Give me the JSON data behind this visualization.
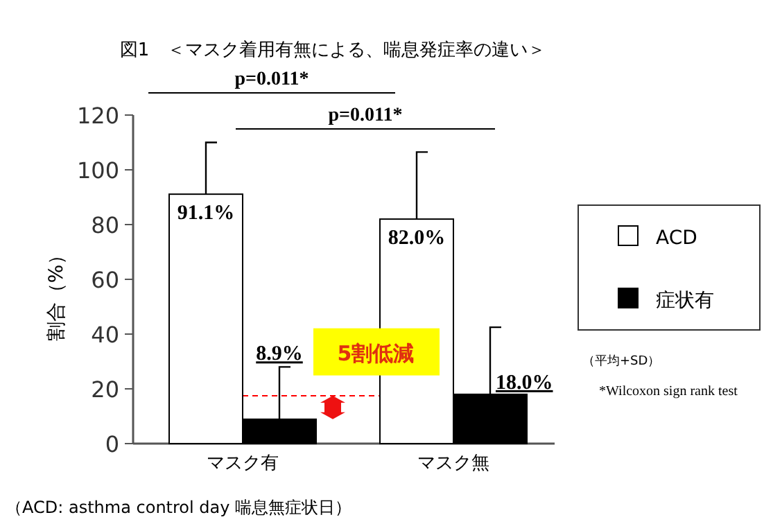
{
  "chart_data": {
    "type": "bar",
    "title": "図1　＜マスク着用有無による、喘息発症率の違い＞",
    "ylabel": "割合（%）",
    "categories": [
      "マスク有",
      "マスク無"
    ],
    "series": [
      {
        "name": "ACD",
        "color": "#ffffff",
        "values": [
          91.1,
          82.0
        ],
        "errors": [
          [
            91.1,
            110
          ],
          [
            82.0,
            106.5
          ]
        ],
        "value_labels": [
          "91.1%",
          "82.0%"
        ]
      },
      {
        "name": "症状有",
        "color": "#000000",
        "values": [
          8.9,
          18.0
        ],
        "errors": [
          [
            8.9,
            28
          ],
          [
            18.0,
            42.5
          ]
        ],
        "value_labels": [
          "8.9%",
          "18.0%"
        ]
      }
    ],
    "ylim": [
      0,
      120
    ],
    "yticks": [
      0,
      20,
      40,
      60,
      80,
      100,
      120
    ],
    "grid": false,
    "legend": "right",
    "ref_lines": [
      {
        "axis": "y",
        "value": 17.5,
        "color": "#ff0000",
        "line_style": "dashed"
      }
    ],
    "annotations": [
      "p=0.011*",
      "p=0.011*",
      {
        "text": "5割低減",
        "x": "マスク無",
        "y": 33
      },
      "（平均+SD）",
      "*Wilcoxon sign rank test",
      "（ACD: asthma control day 喘息無症状日）"
    ]
  }
}
